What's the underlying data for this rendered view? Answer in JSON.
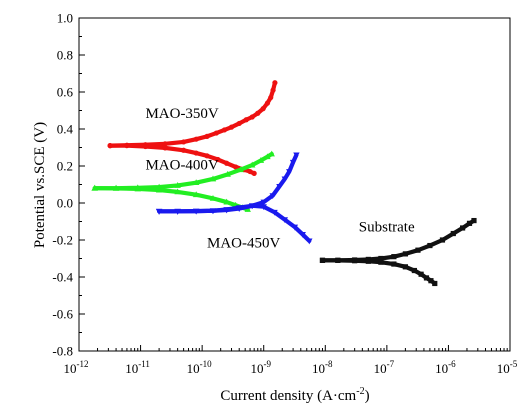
{
  "chart_data": {
    "type": "line",
    "title": "",
    "xlabel": "Current density (A·cm",
    "xlabel_sup": "-2",
    "xlabel_end": ")",
    "ylabel": "Potential vs.SCE (V)",
    "x_scale": "log",
    "xlim": [
      1e-12,
      1e-05
    ],
    "ylim": [
      -0.8,
      1.0
    ],
    "grid": false,
    "legend": "none",
    "x_ticks": [
      {
        "value": 1e-12,
        "base": "10",
        "exp": "-12"
      },
      {
        "value": 1e-11,
        "base": "10",
        "exp": "-11"
      },
      {
        "value": 1e-10,
        "base": "10",
        "exp": "-10"
      },
      {
        "value": 1e-09,
        "base": "10",
        "exp": "-9"
      },
      {
        "value": 1e-08,
        "base": "10",
        "exp": "-8"
      },
      {
        "value": 1e-07,
        "base": "10",
        "exp": "-7"
      },
      {
        "value": 1e-06,
        "base": "10",
        "exp": "-6"
      },
      {
        "value": 1e-05,
        "base": "10",
        "exp": "-5"
      }
    ],
    "y_ticks": [
      {
        "value": 1.0,
        "label": "1.0"
      },
      {
        "value": 0.8,
        "label": "0.8"
      },
      {
        "value": 0.6,
        "label": "0.6"
      },
      {
        "value": 0.4,
        "label": "0.4"
      },
      {
        "value": 0.2,
        "label": "0.2"
      },
      {
        "value": 0.0,
        "label": "0.0"
      },
      {
        "value": -0.2,
        "label": "-0.2"
      },
      {
        "value": -0.4,
        "label": "-0.4"
      },
      {
        "value": -0.6,
        "label": "-0.6"
      },
      {
        "value": -0.8,
        "label": "-0.8"
      }
    ],
    "series": [
      {
        "name": "MAO-350V",
        "color": "#ee1111",
        "marker": "circle",
        "label_x": 1.2e-11,
        "label_y": 0.46,
        "branches": [
          {
            "x": [
              3.2e-12,
              6e-12,
              1.2e-11,
              2.5e-11,
              5e-11,
              8e-11,
              1.2e-10,
              1.7e-10,
              2.3e-10,
              3e-10,
              4e-10,
              5.2e-10,
              6.5e-10,
              8e-10,
              9.8e-10,
              1.15e-09,
              1.3e-09,
              1.42e-09,
              1.52e-09
            ],
            "y": [
              0.31,
              0.312,
              0.315,
              0.32,
              0.33,
              0.345,
              0.36,
              0.378,
              0.395,
              0.41,
              0.43,
              0.45,
              0.465,
              0.485,
              0.51,
              0.54,
              0.57,
              0.61,
              0.65
            ]
          },
          {
            "x": [
              3.2e-12,
              6e-12,
              1.2e-11,
              2.5e-11,
              5e-11,
              8e-11,
              1.2e-10,
              1.8e-10,
              2.5e-10,
              3.5e-10,
              4.8e-10,
              6e-10,
              7e-10
            ],
            "y": [
              0.31,
              0.31,
              0.305,
              0.298,
              0.285,
              0.27,
              0.255,
              0.235,
              0.215,
              0.195,
              0.18,
              0.17,
              0.16
            ]
          }
        ]
      },
      {
        "name": "MAO-400V",
        "color": "#22ee22",
        "marker": "triangle",
        "label_x": 1.2e-11,
        "label_y": 0.18,
        "branches": [
          {
            "x": [
              1.8e-12,
              4e-12,
              9e-12,
              2e-11,
              4e-11,
              8e-11,
              1.5e-10,
              2.6e-10,
              4.2e-10,
              6.5e-10,
              9e-10,
              1.15e-09,
              1.35e-09
            ],
            "y": [
              0.08,
              0.08,
              0.082,
              0.086,
              0.095,
              0.11,
              0.13,
              0.155,
              0.18,
              0.205,
              0.23,
              0.25,
              0.265
            ]
          },
          {
            "x": [
              1.8e-12,
              4e-12,
              9e-12,
              2e-11,
              4e-11,
              8e-11,
              1.5e-10,
              2.5e-10,
              3.5e-10,
              4.5e-10,
              5.5e-10
            ],
            "y": [
              0.08,
              0.079,
              0.076,
              0.07,
              0.06,
              0.045,
              0.025,
              0.005,
              -0.012,
              -0.025,
              -0.035
            ]
          }
        ]
      },
      {
        "name": "MAO-450V",
        "color": "#1a1aee",
        "marker": "triangle-down",
        "label_x": 1.2e-10,
        "label_y": -0.24,
        "branches": [
          {
            "x": [
              2e-11,
              4e-11,
              8e-11,
              1.5e-10,
              2.5e-10,
              4e-10,
              6.5e-10,
              1e-09,
              1.4e-09,
              1.8e-09,
              2.2e-09,
              2.6e-09,
              3e-09,
              3.4e-09
            ],
            "y": [
              -0.045,
              -0.045,
              -0.044,
              -0.042,
              -0.038,
              -0.03,
              -0.015,
              0.005,
              0.04,
              0.09,
              0.13,
              0.17,
              0.22,
              0.26
            ]
          },
          {
            "x": [
              2e-11,
              4e-11,
              8e-11,
              1.5e-10,
              2.5e-10,
              4e-10,
              6.5e-10,
              1e-09,
              1.5e-09,
              2.2e-09,
              3.2e-09,
              4.3e-09,
              5.5e-09
            ],
            "y": [
              -0.045,
              -0.045,
              -0.044,
              -0.042,
              -0.035,
              -0.025,
              -0.015,
              -0.02,
              -0.05,
              -0.09,
              -0.13,
              -0.17,
              -0.205
            ]
          }
        ]
      },
      {
        "name": "Substrate",
        "color": "#111111",
        "marker": "square",
        "label_x": 3.5e-08,
        "label_y": -0.155,
        "branches": [
          {
            "x": [
              9e-09,
              1.6e-08,
              3e-08,
              5e-08,
              8e-08,
              1.3e-07,
              2e-07,
              3.2e-07,
              5e-07,
              8e-07,
              1.2e-06,
              1.7e-06,
              2.2e-06,
              2.6e-06
            ],
            "y": [
              -0.31,
              -0.31,
              -0.308,
              -0.305,
              -0.3,
              -0.29,
              -0.275,
              -0.255,
              -0.23,
              -0.2,
              -0.165,
              -0.135,
              -0.11,
              -0.095
            ]
          },
          {
            "x": [
              9e-09,
              1.6e-08,
              3e-08,
              5e-08,
              8e-08,
              1.3e-07,
              2e-07,
              2.8e-07,
              3.6e-07,
              4.4e-07,
              5.2e-07,
              6e-07
            ],
            "y": [
              -0.31,
              -0.31,
              -0.312,
              -0.315,
              -0.32,
              -0.33,
              -0.345,
              -0.365,
              -0.385,
              -0.405,
              -0.42,
              -0.435
            ]
          }
        ]
      }
    ]
  }
}
